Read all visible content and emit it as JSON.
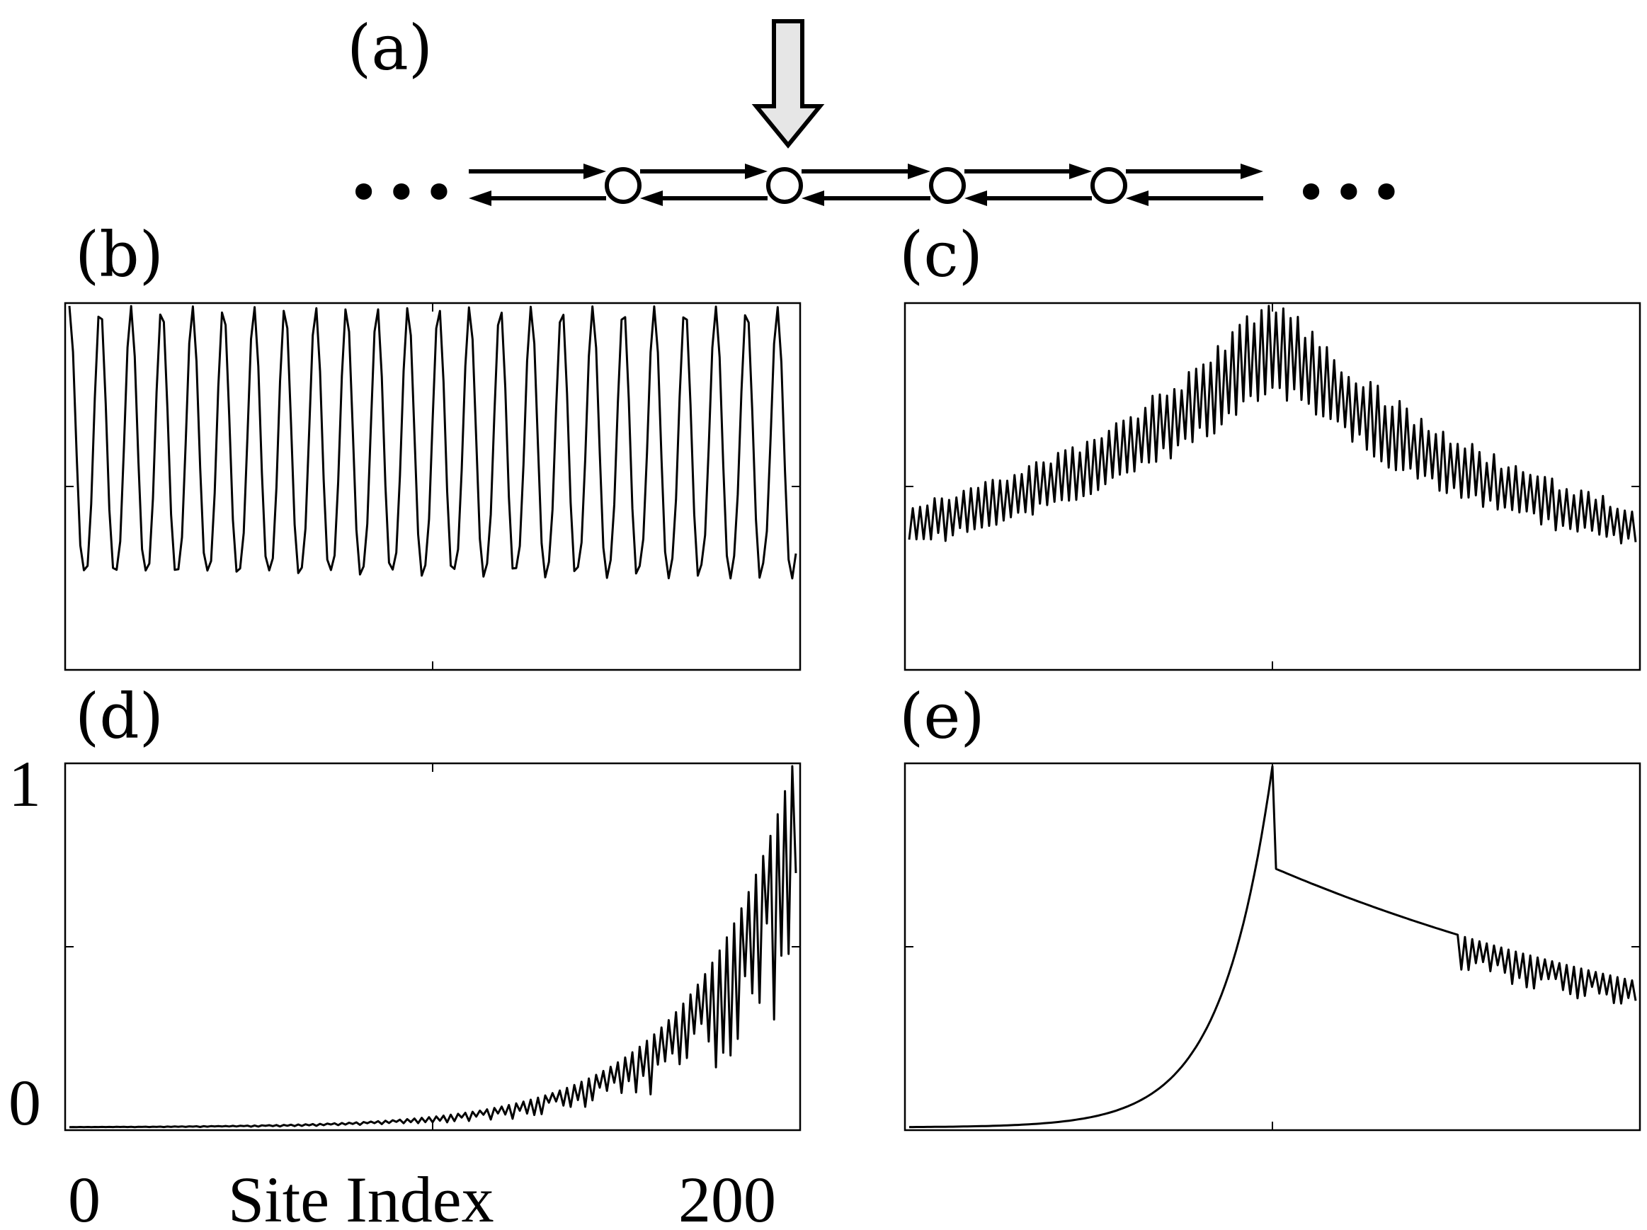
{
  "panels": {
    "a": "(a)",
    "b": "(b)",
    "c": "(c)",
    "d": "(d)",
    "e": "(e)"
  },
  "diagram": {
    "left_ellipsis": "•••",
    "right_ellipsis": "•••",
    "site_count": 4,
    "injection_arrow_site": 2
  },
  "axes": {
    "xlabel": "Site Index",
    "x_ticks": [
      "0",
      "200"
    ],
    "y_ticks": [
      "0",
      "1"
    ]
  },
  "chart_data": [
    {
      "panel": "b",
      "type": "line",
      "xlim": [
        0,
        200
      ],
      "ylim": [
        0,
        1
      ],
      "generator": "quasiperiodic-extended",
      "x": "site index 0-200",
      "y": "normalized amplitude, extended across the chain"
    },
    {
      "panel": "c",
      "type": "line",
      "xlim": [
        0,
        200
      ],
      "ylim": [
        0,
        1
      ],
      "generator": "center-peaked-oscillating",
      "peak_x": 100,
      "y": "normalized amplitude, peaked at center"
    },
    {
      "panel": "d",
      "type": "line",
      "xlim": [
        0,
        200
      ],
      "ylim": [
        0,
        1
      ],
      "generator": "right-edge-localized",
      "y": "normalized amplitude, grows toward right edge, max 1 at site 200"
    },
    {
      "panel": "e",
      "type": "line",
      "xlim": [
        0,
        200
      ],
      "ylim": [
        0,
        1
      ],
      "generator": "asymmetric-center-peak",
      "peak_x": 100,
      "y": "normalized amplitude, sharp peak at center with slow decay to the right"
    }
  ]
}
